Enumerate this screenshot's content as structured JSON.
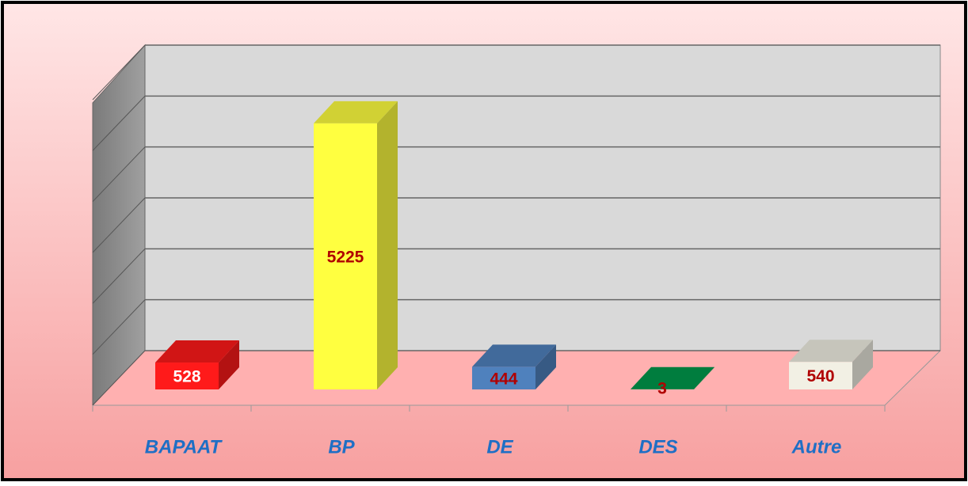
{
  "chart_data": {
    "type": "bar3d",
    "categories": [
      "BAPAAT",
      "BP",
      "DE",
      "DES",
      "Autre"
    ],
    "values": [
      528,
      5225,
      444,
      3,
      540
    ],
    "colors": [
      "#ff1a1a",
      "#ffff40",
      "#4f81bd",
      "#00994c",
      "#f2f0e4"
    ],
    "label_colors": [
      "#ffffff",
      "#b00000",
      "#b00000",
      "#b00000",
      "#b00000"
    ],
    "ylim": [
      0,
      6000
    ],
    "yticks": [
      0,
      1000,
      2000,
      3000,
      4000,
      5000,
      6000
    ],
    "grid": true
  }
}
